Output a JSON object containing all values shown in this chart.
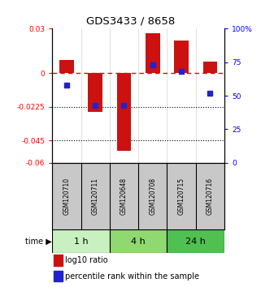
{
  "title": "GDS3433 / 8658",
  "samples": [
    "GSM120710",
    "GSM120711",
    "GSM120648",
    "GSM120708",
    "GSM120715",
    "GSM120716"
  ],
  "log10_ratio": [
    0.009,
    -0.026,
    -0.052,
    0.027,
    0.022,
    0.008
  ],
  "percentile_rank": [
    58,
    43,
    43,
    73,
    68,
    52
  ],
  "ylim_left": [
    -0.06,
    0.03
  ],
  "ylim_right": [
    0,
    100
  ],
  "yticks_left": [
    0.03,
    0,
    -0.0225,
    -0.045,
    -0.06
  ],
  "ytick_labels_left": [
    "0.03",
    "0",
    "-0.0225",
    "-0.045",
    "-0.06"
  ],
  "yticks_right": [
    100,
    75,
    50,
    25,
    0
  ],
  "ytick_labels_right": [
    "100%",
    "75",
    "50",
    "25",
    "0"
  ],
  "dotted_yticks": [
    -0.0225,
    -0.045
  ],
  "time_groups": [
    {
      "label": "1 h",
      "samples": [
        0,
        1
      ],
      "color": "#c8f0c0"
    },
    {
      "label": "4 h",
      "samples": [
        2,
        3
      ],
      "color": "#90d870"
    },
    {
      "label": "24 h",
      "samples": [
        4,
        5
      ],
      "color": "#50c050"
    }
  ],
  "bar_color": "#cc1111",
  "blue_color": "#2222cc",
  "dashed_line_color": "#cc1111",
  "background_color": "#ffffff",
  "plot_bg_color": "#ffffff",
  "bar_width": 0.5,
  "blue_marker_size": 5,
  "sample_bg_color": "#c8c8c8"
}
